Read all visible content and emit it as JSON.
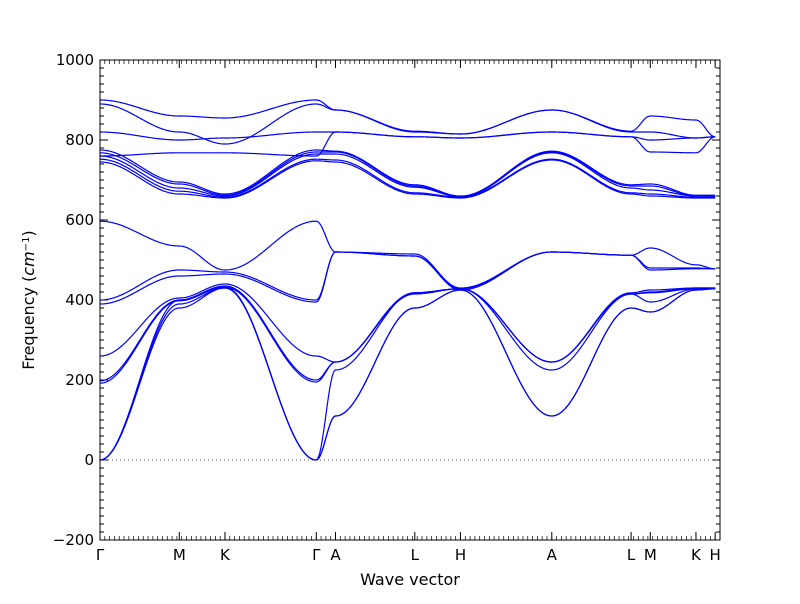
{
  "chart_data": {
    "type": "line",
    "title": "",
    "xlabel": "Wave vector",
    "ylabel_main": "Frequency (",
    "ylabel_unit": "cm",
    "ylabel_exp": "−1",
    "ylabel_close": ")",
    "ylim": [
      -200,
      1000
    ],
    "yticks": [
      -200,
      0,
      200,
      400,
      600,
      800,
      1000
    ],
    "ytick_labels": [
      "−200",
      "0",
      "200",
      "400",
      "600",
      "800",
      "1000"
    ],
    "xlim": [
      0,
      12.9
    ],
    "path_points": [
      {
        "label": "Γ",
        "x": 0.0
      },
      {
        "label": "M",
        "x": 1.65
      },
      {
        "label": "K",
        "x": 2.6
      },
      {
        "label": "Γ",
        "x": 4.5
      },
      {
        "label": "A",
        "x": 4.9
      },
      {
        "label": "L",
        "x": 6.55
      },
      {
        "label": "H",
        "x": 7.5
      },
      {
        "label": "A",
        "x": 9.4
      },
      {
        "label": "L",
        "x": 11.05
      },
      {
        "label": "M",
        "x": 11.45
      },
      {
        "label": "K",
        "x": 12.4
      },
      {
        "label": "H",
        "x": 12.8
      }
    ],
    "zero_line": {
      "y": 0,
      "style": "dotted"
    },
    "line_color": "#0000ff",
    "frame_color": "#000000",
    "series": [
      {
        "x": [
          0,
          1.65,
          2.6,
          4.5,
          4.9,
          6.55,
          7.5,
          9.4,
          11.05,
          11.45,
          12.4,
          12.8
        ],
        "values": [
          0,
          380,
          430,
          0,
          110,
          380,
          425,
          110,
          380,
          370,
          425,
          428
        ]
      },
      {
        "x": [
          0,
          1.65,
          2.6,
          4.5,
          4.9,
          6.55,
          7.5,
          9.4,
          11.05,
          11.45,
          12.4,
          12.8
        ],
        "values": [
          0,
          390,
          430,
          0,
          110,
          380,
          425,
          110,
          380,
          370,
          425,
          428
        ]
      },
      {
        "x": [
          0,
          1.65,
          2.6,
          4.5,
          4.9,
          6.55,
          7.5,
          9.4,
          11.05,
          11.45,
          12.4,
          12.8
        ],
        "values": [
          0,
          400,
          432,
          0,
          225,
          418,
          428,
          225,
          415,
          395,
          428,
          428
        ]
      },
      {
        "x": [
          0,
          1.65,
          2.6,
          4.5,
          4.9,
          6.55,
          7.5,
          9.4,
          11.05,
          11.45,
          12.4,
          12.8
        ],
        "values": [
          192,
          398,
          432,
          195,
          245,
          418,
          428,
          245,
          415,
          418,
          428,
          428
        ]
      },
      {
        "x": [
          0,
          1.65,
          2.6,
          4.5,
          4.9,
          6.55,
          7.5,
          9.4,
          11.05,
          11.45,
          12.4,
          12.8
        ],
        "values": [
          198,
          400,
          435,
          200,
          245,
          418,
          428,
          245,
          415,
          420,
          430,
          430
        ]
      },
      {
        "x": [
          0,
          1.65,
          2.6,
          4.5,
          4.9,
          6.55,
          7.5,
          9.4,
          11.05,
          11.45,
          12.4,
          12.8
        ],
        "values": [
          260,
          405,
          440,
          260,
          245,
          415,
          428,
          245,
          418,
          425,
          430,
          430
        ]
      },
      {
        "x": [
          0,
          1.65,
          2.6,
          4.5,
          4.9,
          6.55,
          7.5,
          9.4,
          11.05,
          11.45,
          12.4,
          12.8
        ],
        "values": [
          390,
          460,
          465,
          395,
          520,
          510,
          425,
          520,
          512,
          475,
          478,
          478
        ]
      },
      {
        "x": [
          0,
          1.65,
          2.6,
          4.5,
          4.9,
          6.55,
          7.5,
          9.4,
          11.05,
          11.45,
          12.4,
          12.8
        ],
        "values": [
          400,
          475,
          470,
          400,
          520,
          515,
          428,
          520,
          512,
          480,
          480,
          478
        ]
      },
      {
        "x": [
          0,
          1.65,
          2.6,
          4.5,
          4.9,
          6.55,
          7.5,
          9.4,
          11.05,
          11.45,
          12.4,
          12.8
        ],
        "values": [
          597,
          535,
          475,
          597,
          520,
          510,
          430,
          520,
          512,
          530,
          488,
          478
        ]
      },
      {
        "x": [
          0,
          1.65,
          2.6,
          4.5,
          4.9,
          6.55,
          7.5,
          9.4,
          11.05,
          11.45,
          12.4,
          12.8
        ],
        "values": [
          745,
          665,
          655,
          748,
          745,
          665,
          655,
          750,
          665,
          660,
          655,
          655
        ]
      },
      {
        "x": [
          0,
          1.65,
          2.6,
          4.5,
          4.9,
          6.55,
          7.5,
          9.4,
          11.05,
          11.45,
          12.4,
          12.8
        ],
        "values": [
          752,
          672,
          657,
          752,
          750,
          668,
          657,
          752,
          668,
          665,
          657,
          657
        ]
      },
      {
        "x": [
          0,
          1.65,
          2.6,
          4.5,
          4.9,
          6.55,
          7.5,
          9.4,
          11.05,
          11.45,
          12.4,
          12.8
        ],
        "values": [
          760,
          680,
          660,
          765,
          765,
          682,
          658,
          768,
          680,
          675,
          660,
          660
        ]
      },
      {
        "x": [
          0,
          1.65,
          2.6,
          4.5,
          4.9,
          6.55,
          7.5,
          9.4,
          11.05,
          11.45,
          12.4,
          12.8
        ],
        "values": [
          768,
          690,
          662,
          770,
          770,
          685,
          658,
          770,
          685,
          685,
          660,
          660
        ]
      },
      {
        "x": [
          0,
          1.65,
          2.6,
          4.5,
          4.9,
          6.55,
          7.5,
          9.4,
          11.05,
          11.45,
          12.4,
          12.8
        ],
        "values": [
          775,
          695,
          665,
          775,
          772,
          688,
          660,
          772,
          688,
          690,
          662,
          662
        ]
      },
      {
        "x": [
          0,
          1.65,
          2.6,
          4.5,
          4.9,
          6.55,
          7.5,
          9.4,
          11.05,
          11.45,
          12.4,
          12.8
        ],
        "values": [
          760,
          768,
          768,
          760,
          820,
          808,
          805,
          820,
          808,
          770,
          768,
          808
        ]
      },
      {
        "x": [
          0,
          1.65,
          2.6,
          4.5,
          4.9,
          6.55,
          7.5,
          9.4,
          11.05,
          11.45,
          12.4,
          12.8
        ],
        "values": [
          820,
          800,
          805,
          820,
          820,
          808,
          805,
          820,
          808,
          800,
          805,
          808
        ]
      },
      {
        "x": [
          0,
          1.65,
          2.6,
          4.5,
          4.9,
          6.55,
          7.5,
          9.4,
          11.05,
          11.45,
          12.4,
          12.8
        ],
        "values": [
          890,
          820,
          790,
          890,
          875,
          820,
          815,
          875,
          820,
          820,
          805,
          808
        ]
      },
      {
        "x": [
          0,
          1.65,
          2.6,
          4.5,
          4.9,
          6.55,
          7.5,
          9.4,
          11.05,
          11.45,
          12.4,
          12.8
        ],
        "values": [
          900,
          860,
          855,
          900,
          875,
          822,
          815,
          875,
          822,
          860,
          850,
          808
        ]
      }
    ]
  }
}
